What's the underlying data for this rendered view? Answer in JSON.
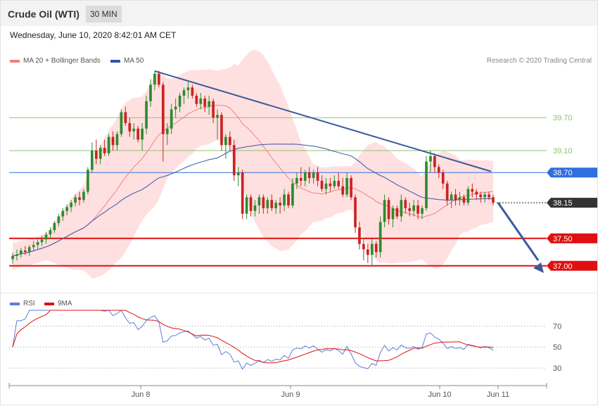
{
  "header": {
    "title": "Crude Oil (WTI)",
    "timeframe": "30 MIN"
  },
  "timestamp": "Wednesday, June 10, 2020 8:42:01 AM CET",
  "legend": {
    "ma20": "MA 20 + Bollinger Bands",
    "ma50": "MA 50",
    "credit": "Research © 2020 Trading Central"
  },
  "rsi_legend": {
    "rsi": "RSI",
    "ma": "9MA"
  },
  "colors": {
    "ma20": "#f08080",
    "ma50": "#3355aa",
    "band_fill": "#ffdada",
    "up": "#2e8b2e",
    "down": "#cc2222",
    "trend": "#3a5a9c",
    "support": "#e01010",
    "resistance_green": "#90c070",
    "pivot_blue": "#2f6fe0",
    "current": "#333333"
  },
  "chart_data": {
    "type": "candlestick",
    "price_levels": [
      {
        "value": 39.7,
        "label": "39.70",
        "kind": "resistance"
      },
      {
        "value": 39.1,
        "label": "39.10",
        "kind": "resistance"
      },
      {
        "value": 38.7,
        "label": "38.70",
        "kind": "pivot"
      },
      {
        "value": 38.15,
        "label": "38.15",
        "kind": "current"
      },
      {
        "value": 37.5,
        "label": "37.50",
        "kind": "support"
      },
      {
        "value": 37.0,
        "label": "37.00",
        "kind": "support"
      }
    ],
    "x_ticks": [
      "Jun 8",
      "Jun 9",
      "Jun 10",
      "Jun 11"
    ],
    "rsi_levels": [
      {
        "value": 70,
        "label": "70"
      },
      {
        "value": 50,
        "label": "50"
      },
      {
        "value": 30,
        "label": "30"
      }
    ],
    "price_range": [
      36.6,
      40.6
    ],
    "rsi_range": [
      18,
      85
    ],
    "candles": [
      [
        37.12,
        37.24,
        37.04,
        37.18
      ],
      [
        37.18,
        37.3,
        37.1,
        37.21
      ],
      [
        37.21,
        37.33,
        37.15,
        37.28
      ],
      [
        37.28,
        37.36,
        37.2,
        37.25
      ],
      [
        37.25,
        37.38,
        37.18,
        37.34
      ],
      [
        37.34,
        37.45,
        37.27,
        37.38
      ],
      [
        37.38,
        37.48,
        37.3,
        37.43
      ],
      [
        37.43,
        37.55,
        37.36,
        37.48
      ],
      [
        37.48,
        37.62,
        37.4,
        37.57
      ],
      [
        37.57,
        37.7,
        37.5,
        37.65
      ],
      [
        37.65,
        37.82,
        37.6,
        37.78
      ],
      [
        37.78,
        37.95,
        37.72,
        37.9
      ],
      [
        37.9,
        38.05,
        37.82,
        38.0
      ],
      [
        38.0,
        38.12,
        37.92,
        38.07
      ],
      [
        38.07,
        38.2,
        37.98,
        38.15
      ],
      [
        38.15,
        38.3,
        38.08,
        38.25
      ],
      [
        38.25,
        38.35,
        38.1,
        38.2
      ],
      [
        38.2,
        38.4,
        38.15,
        38.35
      ],
      [
        38.35,
        38.8,
        38.3,
        38.75
      ],
      [
        38.75,
        39.25,
        38.7,
        39.1
      ],
      [
        39.1,
        39.3,
        38.85,
        38.95
      ],
      [
        38.95,
        39.2,
        38.85,
        39.15
      ],
      [
        39.15,
        39.3,
        39.0,
        39.05
      ],
      [
        39.05,
        39.4,
        39.0,
        39.35
      ],
      [
        39.35,
        39.45,
        39.1,
        39.2
      ],
      [
        39.2,
        39.45,
        39.1,
        39.4
      ],
      [
        39.4,
        39.85,
        39.35,
        39.8
      ],
      [
        39.8,
        39.9,
        39.55,
        39.6
      ],
      [
        39.6,
        39.7,
        39.35,
        39.45
      ],
      [
        39.45,
        39.6,
        39.3,
        39.5
      ],
      [
        39.5,
        39.55,
        39.25,
        39.3
      ],
      [
        39.3,
        39.6,
        39.1,
        39.5
      ],
      [
        39.5,
        40.1,
        39.4,
        40.0
      ],
      [
        40.0,
        40.4,
        39.9,
        40.3
      ],
      [
        40.3,
        40.55,
        40.2,
        40.5
      ],
      [
        40.5,
        40.55,
        40.25,
        40.3
      ],
      [
        40.3,
        40.35,
        38.9,
        39.4
      ],
      [
        39.4,
        39.6,
        39.2,
        39.5
      ],
      [
        39.5,
        39.95,
        39.4,
        39.85
      ],
      [
        39.85,
        40.05,
        39.7,
        39.9
      ],
      [
        39.9,
        40.15,
        39.8,
        40.1
      ],
      [
        40.1,
        40.25,
        39.95,
        40.2
      ],
      [
        40.2,
        40.35,
        40.05,
        40.25
      ],
      [
        40.25,
        40.3,
        40.05,
        40.1
      ],
      [
        40.1,
        40.15,
        39.9,
        39.95
      ],
      [
        39.95,
        40.15,
        39.85,
        40.05
      ],
      [
        40.05,
        40.1,
        39.8,
        39.9
      ],
      [
        39.9,
        40.1,
        39.75,
        40.0
      ],
      [
        40.0,
        40.05,
        39.6,
        39.7
      ],
      [
        39.7,
        39.85,
        39.3,
        39.75
      ],
      [
        39.75,
        39.8,
        39.1,
        39.2
      ],
      [
        39.2,
        39.4,
        38.95,
        39.35
      ],
      [
        39.35,
        39.45,
        39.1,
        39.2
      ],
      [
        39.2,
        39.3,
        38.55,
        38.65
      ],
      [
        38.65,
        38.8,
        38.45,
        38.7
      ],
      [
        38.7,
        38.75,
        37.85,
        37.95
      ],
      [
        37.95,
        38.3,
        37.85,
        38.25
      ],
      [
        38.25,
        38.3,
        37.9,
        38.0
      ],
      [
        38.0,
        38.2,
        37.9,
        38.1
      ],
      [
        38.1,
        38.3,
        37.95,
        38.25
      ],
      [
        38.25,
        38.3,
        37.95,
        38.05
      ],
      [
        38.05,
        38.25,
        37.95,
        38.2
      ],
      [
        38.2,
        38.3,
        38.0,
        38.05
      ],
      [
        38.05,
        38.2,
        37.95,
        38.15
      ],
      [
        38.15,
        38.25,
        37.95,
        38.1
      ],
      [
        38.1,
        38.4,
        38.0,
        38.3
      ],
      [
        38.3,
        38.35,
        38.05,
        38.1
      ],
      [
        38.1,
        38.6,
        38.05,
        38.5
      ],
      [
        38.5,
        38.7,
        38.4,
        38.6
      ],
      [
        38.6,
        38.8,
        38.45,
        38.55
      ],
      [
        38.55,
        38.75,
        38.45,
        38.7
      ],
      [
        38.7,
        38.8,
        38.5,
        38.6
      ],
      [
        38.6,
        38.75,
        38.5,
        38.7
      ],
      [
        38.7,
        38.8,
        38.45,
        38.55
      ],
      [
        38.55,
        38.65,
        38.35,
        38.4
      ],
      [
        38.4,
        38.6,
        38.3,
        38.5
      ],
      [
        38.5,
        38.6,
        38.35,
        38.45
      ],
      [
        38.45,
        38.65,
        38.4,
        38.55
      ],
      [
        38.55,
        38.7,
        38.4,
        38.45
      ],
      [
        38.45,
        38.6,
        38.25,
        38.3
      ],
      [
        38.3,
        38.7,
        38.25,
        38.6
      ],
      [
        38.6,
        38.65,
        38.2,
        38.25
      ],
      [
        38.25,
        38.3,
        37.6,
        37.7
      ],
      [
        37.7,
        37.8,
        37.3,
        37.4
      ],
      [
        37.4,
        37.5,
        37.1,
        37.3
      ],
      [
        37.3,
        37.4,
        37.05,
        37.2
      ],
      [
        37.2,
        37.5,
        37.0,
        37.4
      ],
      [
        37.4,
        37.45,
        37.15,
        37.25
      ],
      [
        37.25,
        37.9,
        37.15,
        37.8
      ],
      [
        37.8,
        38.3,
        37.7,
        38.2
      ],
      [
        38.2,
        38.25,
        37.75,
        37.85
      ],
      [
        37.85,
        38.1,
        37.7,
        38.05
      ],
      [
        38.05,
        38.1,
        37.85,
        37.9
      ],
      [
        37.9,
        38.3,
        37.8,
        38.2
      ],
      [
        38.2,
        38.25,
        37.95,
        38.05
      ],
      [
        38.05,
        38.15,
        37.9,
        38.0
      ],
      [
        38.0,
        38.2,
        37.9,
        38.1
      ],
      [
        38.1,
        38.2,
        37.85,
        37.95
      ],
      [
        37.95,
        38.1,
        37.85,
        38.05
      ],
      [
        38.05,
        39.0,
        38.0,
        38.9
      ],
      [
        38.9,
        39.1,
        38.7,
        39.0
      ],
      [
        39.0,
        39.05,
        38.7,
        38.8
      ],
      [
        38.8,
        38.85,
        38.6,
        38.7
      ],
      [
        38.7,
        38.75,
        38.4,
        38.5
      ],
      [
        38.5,
        38.55,
        38.1,
        38.2
      ],
      [
        38.2,
        38.35,
        38.05,
        38.3
      ],
      [
        38.3,
        38.4,
        38.1,
        38.2
      ],
      [
        38.2,
        38.35,
        38.1,
        38.25
      ],
      [
        38.25,
        38.3,
        38.1,
        38.15
      ],
      [
        38.15,
        38.45,
        38.1,
        38.4
      ],
      [
        38.4,
        38.5,
        38.25,
        38.35
      ],
      [
        38.35,
        38.4,
        38.2,
        38.3
      ],
      [
        38.3,
        38.35,
        38.15,
        38.25
      ],
      [
        38.25,
        38.35,
        38.15,
        38.3
      ],
      [
        38.3,
        38.35,
        38.2,
        38.25
      ],
      [
        38.25,
        38.3,
        38.1,
        38.15
      ]
    ]
  }
}
